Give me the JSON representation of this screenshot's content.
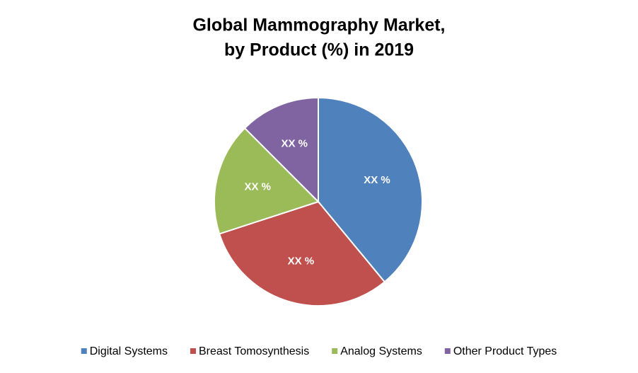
{
  "chart_data": {
    "type": "pie",
    "title": [
      "Global Mammography Market,",
      "by Product (%) in 2019"
    ],
    "categories": [
      "Digital Systems",
      "Breast Tomosynthesis",
      "Analog Systems",
      "Other Product Types"
    ],
    "values": [
      39,
      31,
      17.5,
      12.5
    ],
    "value_labels": [
      "XX %",
      "XX %",
      "XX %",
      "XX %"
    ],
    "colors": [
      "#4f81bd",
      "#c0504d",
      "#9bbb59",
      "#8064a2"
    ],
    "legend": "bottom"
  }
}
